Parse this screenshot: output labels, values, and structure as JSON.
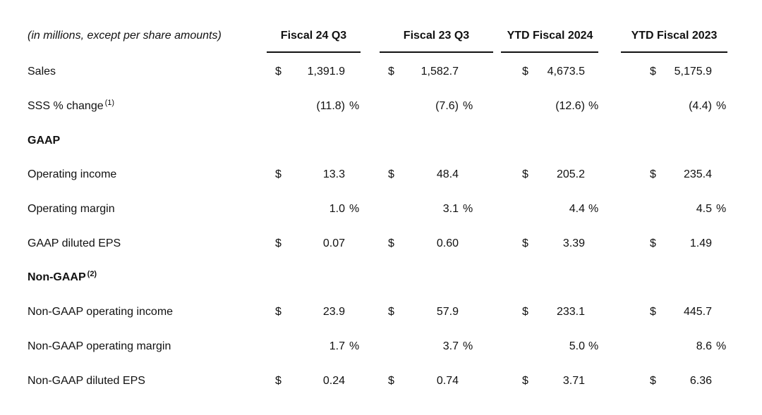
{
  "header": {
    "caption": "(in millions, except per share amounts)",
    "columns": [
      "Fiscal 24 Q3",
      "Fiscal 23 Q3",
      "YTD Fiscal 2024",
      "YTD Fiscal 2023"
    ]
  },
  "rows": [
    {
      "label": "Sales",
      "sup": "",
      "cells": [
        {
          "dollar": "$",
          "value": "1,391.9",
          "pct": ""
        },
        {
          "dollar": "$",
          "value": "1,582.7",
          "pct": ""
        },
        {
          "dollar": "$",
          "value": "4,673.5",
          "pct": ""
        },
        {
          "dollar": "$",
          "value": "5,175.9",
          "pct": ""
        }
      ]
    },
    {
      "label": "SSS % change",
      "sup": "(1)",
      "cells": [
        {
          "dollar": "",
          "value": "(11.8)",
          "pct": "%"
        },
        {
          "dollar": "",
          "value": "(7.6)",
          "pct": "%"
        },
        {
          "dollar": "",
          "value": "(12.6)",
          "pct": "%"
        },
        {
          "dollar": "",
          "value": "(4.4)",
          "pct": "%"
        }
      ]
    },
    {
      "section": "GAAP",
      "sup": ""
    },
    {
      "label": "Operating income",
      "sup": "",
      "cells": [
        {
          "dollar": "$",
          "value": "13.3",
          "pct": ""
        },
        {
          "dollar": "$",
          "value": "48.4",
          "pct": ""
        },
        {
          "dollar": "$",
          "value": "205.2",
          "pct": ""
        },
        {
          "dollar": "$",
          "value": "235.4",
          "pct": ""
        }
      ]
    },
    {
      "label": "Operating margin",
      "sup": "",
      "cells": [
        {
          "dollar": "",
          "value": "1.0",
          "pct": "%"
        },
        {
          "dollar": "",
          "value": "3.1",
          "pct": "%"
        },
        {
          "dollar": "",
          "value": "4.4",
          "pct": "%"
        },
        {
          "dollar": "",
          "value": "4.5",
          "pct": "%"
        }
      ]
    },
    {
      "label": "GAAP diluted EPS",
      "sup": "",
      "cells": [
        {
          "dollar": "$",
          "value": "0.07",
          "pct": ""
        },
        {
          "dollar": "$",
          "value": "0.60",
          "pct": ""
        },
        {
          "dollar": "$",
          "value": "3.39",
          "pct": ""
        },
        {
          "dollar": "$",
          "value": "1.49",
          "pct": ""
        }
      ]
    },
    {
      "section": "Non-GAAP",
      "sup": "(2)"
    },
    {
      "label": "Non-GAAP operating income",
      "sup": "",
      "cells": [
        {
          "dollar": "$",
          "value": "23.9",
          "pct": ""
        },
        {
          "dollar": "$",
          "value": "57.9",
          "pct": ""
        },
        {
          "dollar": "$",
          "value": "233.1",
          "pct": ""
        },
        {
          "dollar": "$",
          "value": "445.7",
          "pct": ""
        }
      ]
    },
    {
      "label": "Non-GAAP operating margin",
      "sup": "",
      "cells": [
        {
          "dollar": "",
          "value": "1.7",
          "pct": "%"
        },
        {
          "dollar": "",
          "value": "3.7",
          "pct": "%"
        },
        {
          "dollar": "",
          "value": "5.0",
          "pct": "%"
        },
        {
          "dollar": "",
          "value": "8.6",
          "pct": "%"
        }
      ]
    },
    {
      "label": "Non-GAAP diluted EPS",
      "sup": "",
      "cells": [
        {
          "dollar": "$",
          "value": "0.24",
          "pct": ""
        },
        {
          "dollar": "$",
          "value": "0.74",
          "pct": ""
        },
        {
          "dollar": "$",
          "value": "3.71",
          "pct": ""
        },
        {
          "dollar": "$",
          "value": "6.36",
          "pct": ""
        }
      ]
    }
  ]
}
